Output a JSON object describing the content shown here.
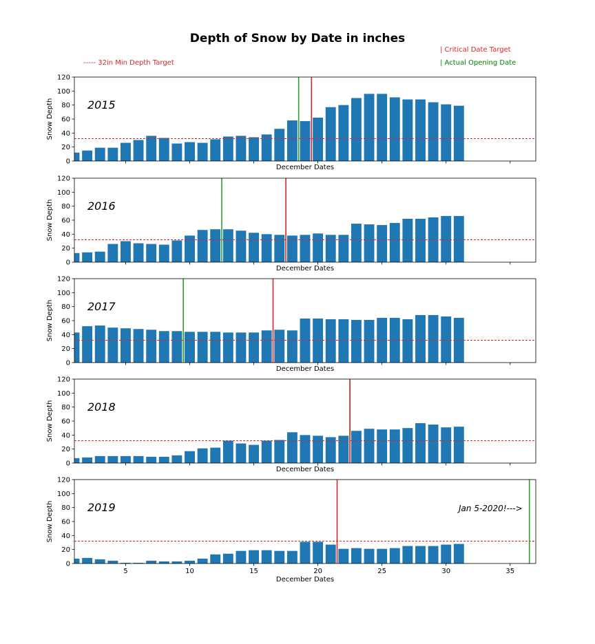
{
  "chart_data": {
    "type": "bar",
    "title": "Depth of Snow by Date in inches",
    "legend": {
      "min_depth": "----- 32in Min Depth Target",
      "critical": "| Critical Date Target",
      "opening": "| Actual Opening Date"
    },
    "colors": {
      "bar": "#1f77b4",
      "critical": "#d62728",
      "opening": "#2ca02c",
      "threshold": "#d62728"
    },
    "xlabel": "December Dates",
    "ylabel": "Snow Depth",
    "xlim": [
      1,
      37
    ],
    "ylim": [
      0,
      120
    ],
    "xticks": [
      "5",
      "10",
      "15",
      "20",
      "25",
      "30",
      "35"
    ],
    "yticks": [
      "0",
      "20",
      "40",
      "60",
      "80",
      "100",
      "120"
    ],
    "threshold": 32,
    "x": [
      1,
      2,
      3,
      4,
      5,
      6,
      7,
      8,
      9,
      10,
      11,
      12,
      13,
      14,
      15,
      16,
      17,
      18,
      19,
      20,
      21,
      22,
      23,
      24,
      25,
      26,
      27,
      28,
      29,
      30,
      31
    ],
    "panels": [
      {
        "year": "2015",
        "critical_date": 19.5,
        "opening_date": 18.5,
        "values": [
          12,
          15,
          19,
          19,
          26,
          30,
          36,
          33,
          25,
          27,
          26,
          31,
          35,
          36,
          34,
          38,
          46,
          58,
          57,
          62,
          77,
          80,
          90,
          96,
          96,
          91,
          88,
          88,
          84,
          81,
          79
        ]
      },
      {
        "year": "2016",
        "critical_date": 17.5,
        "opening_date": 12.5,
        "values": [
          13,
          14,
          15,
          26,
          30,
          27,
          26,
          25,
          31,
          38,
          46,
          47,
          47,
          45,
          42,
          40,
          39,
          38,
          39,
          41,
          39,
          39,
          55,
          54,
          53,
          56,
          62,
          62,
          64,
          66,
          66
        ]
      },
      {
        "year": "2017",
        "critical_date": 16.5,
        "opening_date": 9.5,
        "values": [
          43,
          52,
          53,
          50,
          49,
          48,
          47,
          45,
          45,
          44,
          44,
          44,
          43,
          43,
          43,
          46,
          47,
          46,
          63,
          63,
          62,
          62,
          61,
          61,
          64,
          64,
          62,
          68,
          68,
          66,
          64
        ]
      },
      {
        "year": "2018",
        "critical_date": 22.5,
        "opening_date": 22.5,
        "values": [
          7,
          8,
          10,
          10,
          10,
          10,
          9,
          9,
          11,
          17,
          21,
          22,
          32,
          28,
          26,
          32,
          33,
          44,
          40,
          39,
          37,
          39,
          46,
          49,
          48,
          48,
          50,
          57,
          55,
          51,
          52
        ]
      },
      {
        "year": "2019",
        "critical_date": 21.5,
        "opening_date": 36.5,
        "annotation": "Jan 5-2020!--->",
        "values": [
          7,
          8,
          6,
          4,
          1,
          1,
          4,
          3,
          3,
          4,
          7,
          13,
          14,
          18,
          19,
          19,
          18,
          18,
          31,
          31,
          27,
          21,
          22,
          21,
          21,
          22,
          25,
          25,
          25,
          27,
          28
        ]
      }
    ]
  }
}
